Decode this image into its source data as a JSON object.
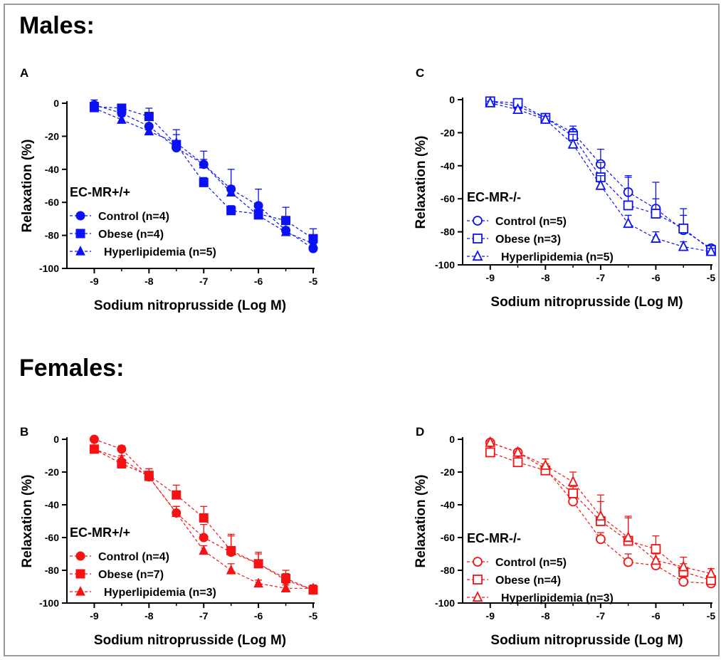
{
  "sections": {
    "males": "Males:",
    "females": "Females:"
  },
  "chart_data": [
    {
      "id": "A",
      "panel_label": "A",
      "type": "line",
      "color": "#0a12f5",
      "marker_fill": "filled",
      "xlabel": "Sodium nitroprusside (Log M)",
      "ylabel": "Relaxation (%)",
      "xlim": [
        -9.5,
        -5
      ],
      "ylim": [
        -100,
        0
      ],
      "xticks": [
        -9,
        -8,
        -7,
        -6,
        -5
      ],
      "yticks": [
        0,
        -20,
        -40,
        -60,
        -80,
        -100
      ],
      "legend_title": "EC-MR+/+",
      "x": [
        -9,
        -8.5,
        -8,
        -7.5,
        -7,
        -6.5,
        -6,
        -5.5,
        -5
      ],
      "series": [
        {
          "name": "Control (n=4)",
          "marker": "circle",
          "values": [
            -1,
            -6,
            -14,
            -27,
            -37,
            -52,
            -62,
            -77,
            -88
          ],
          "errors": [
            3,
            4,
            4,
            4,
            8,
            12,
            10,
            7,
            3
          ]
        },
        {
          "name": "Obese (n=4)",
          "marker": "square",
          "values": [
            -2,
            -3,
            -8,
            -25,
            -48,
            -65,
            -67,
            -71,
            -82
          ],
          "errors": [
            2,
            2,
            5,
            9,
            3,
            3,
            4,
            8,
            6
          ]
        },
        {
          "name": "Hyperlipidemia (n=5)",
          "marker": "triangle",
          "values": [
            -3,
            -10,
            -17,
            -24,
            -37,
            -54,
            -68,
            -78,
            -85
          ],
          "errors": [
            2,
            2,
            2,
            5,
            3,
            4,
            3,
            3,
            2
          ]
        }
      ]
    },
    {
      "id": "C",
      "panel_label": "C",
      "type": "line",
      "color": "#0a12f5",
      "marker_fill": "open",
      "xlabel": "Sodium nitroprusside (Log M)",
      "ylabel": "Relaxation (%)",
      "xlim": [
        -9.5,
        -5
      ],
      "ylim": [
        -100,
        0
      ],
      "xticks": [
        -9,
        -8,
        -7,
        -6,
        -5
      ],
      "yticks": [
        0,
        -20,
        -40,
        -60,
        -80,
        -100
      ],
      "legend_title": "EC-MR-/-",
      "x": [
        -9,
        -8.5,
        -8,
        -7.5,
        -7,
        -6.5,
        -6,
        -5.5,
        -5
      ],
      "series": [
        {
          "name": "Control (n=5)",
          "marker": "circle",
          "values": [
            -1,
            -4,
            -11,
            -20,
            -39,
            -56,
            -66,
            -79,
            -90
          ],
          "errors": [
            1,
            1,
            2,
            4,
            9,
            10,
            16,
            13,
            2
          ]
        },
        {
          "name": "Obese (n=3)",
          "marker": "square",
          "values": [
            -1,
            -2,
            -11,
            -22,
            -47,
            -64,
            -69,
            -78,
            -91
          ],
          "errors": [
            1,
            2,
            2,
            4,
            9,
            17,
            9,
            8,
            2
          ]
        },
        {
          "name": "Hyperlipidemia (n=5)",
          "marker": "triangle",
          "values": [
            -2,
            -6,
            -12,
            -27,
            -52,
            -75,
            -84,
            -89,
            -92
          ],
          "errors": [
            1,
            1,
            2,
            6,
            6,
            5,
            4,
            3,
            2
          ]
        }
      ]
    },
    {
      "id": "B",
      "panel_label": "B",
      "type": "line",
      "color": "#f51212",
      "marker_fill": "filled",
      "xlabel": "Sodium nitroprusside (Log M)",
      "ylabel": "Relaxation (%)",
      "xlim": [
        -9.5,
        -5
      ],
      "ylim": [
        -100,
        0
      ],
      "xticks": [
        -9,
        -8,
        -7,
        -6,
        -5
      ],
      "yticks": [
        0,
        -20,
        -40,
        -60,
        -80,
        -100
      ],
      "legend_title": "EC-MR+/+",
      "x": [
        -9,
        -8.5,
        -8,
        -7.5,
        -7,
        -6.5,
        -6,
        -5.5,
        -5
      ],
      "series": [
        {
          "name": "Control (n=4)",
          "marker": "circle",
          "values": [
            0,
            -6,
            -23,
            -45,
            -60,
            -69,
            -76,
            -86,
            -92
          ],
          "errors": [
            1,
            2,
            5,
            4,
            8,
            10,
            6,
            4,
            3
          ]
        },
        {
          "name": "Obese (n=7)",
          "marker": "square",
          "values": [
            -6,
            -15,
            -22,
            -34,
            -48,
            -68,
            -76,
            -85,
            -92
          ],
          "errors": [
            1,
            3,
            4,
            6,
            7,
            10,
            7,
            5,
            3
          ]
        },
        {
          "name": "Hyperlipidemia (n=3)",
          "marker": "triangle",
          "values": [
            -6,
            -12,
            -23,
            -45,
            -68,
            -80,
            -88,
            -91,
            -91
          ],
          "errors": [
            1,
            2,
            3,
            4,
            3,
            4,
            2,
            2,
            2
          ]
        }
      ]
    },
    {
      "id": "D",
      "panel_label": "D",
      "type": "line",
      "color": "#f51212",
      "marker_fill": "open",
      "xlabel": "Sodium nitroprusside (Log M)",
      "ylabel": "Relaxation (%)",
      "xlim": [
        -9.5,
        -5
      ],
      "ylim": [
        -100,
        0
      ],
      "xticks": [
        -9,
        -8,
        -7,
        -6,
        -5
      ],
      "yticks": [
        0,
        -20,
        -40,
        -60,
        -80,
        -100
      ],
      "legend_title": "EC-MR-/-",
      "x": [
        -9,
        -8.5,
        -8,
        -7.5,
        -7,
        -6.5,
        -6,
        -5.5,
        -5
      ],
      "series": [
        {
          "name": "Control (n=5)",
          "marker": "circle",
          "values": [
            -2,
            -8,
            -18,
            -38,
            -61,
            -75,
            -77,
            -87,
            -88
          ],
          "errors": [
            1,
            2,
            3,
            5,
            4,
            5,
            4,
            3,
            2
          ]
        },
        {
          "name": "Obese (n=4)",
          "marker": "square",
          "values": [
            -8,
            -14,
            -19,
            -33,
            -50,
            -62,
            -67,
            -81,
            -86
          ],
          "errors": [
            1,
            2,
            2,
            4,
            16,
            14,
            8,
            5,
            3
          ]
        },
        {
          "name": "Hyperlipidemia (n=3)",
          "marker": "triangle",
          "values": [
            -2,
            -8,
            -16,
            -26,
            -47,
            -60,
            -74,
            -78,
            -82
          ],
          "errors": [
            1,
            2,
            4,
            6,
            9,
            13,
            4,
            6,
            3
          ]
        }
      ]
    }
  ]
}
